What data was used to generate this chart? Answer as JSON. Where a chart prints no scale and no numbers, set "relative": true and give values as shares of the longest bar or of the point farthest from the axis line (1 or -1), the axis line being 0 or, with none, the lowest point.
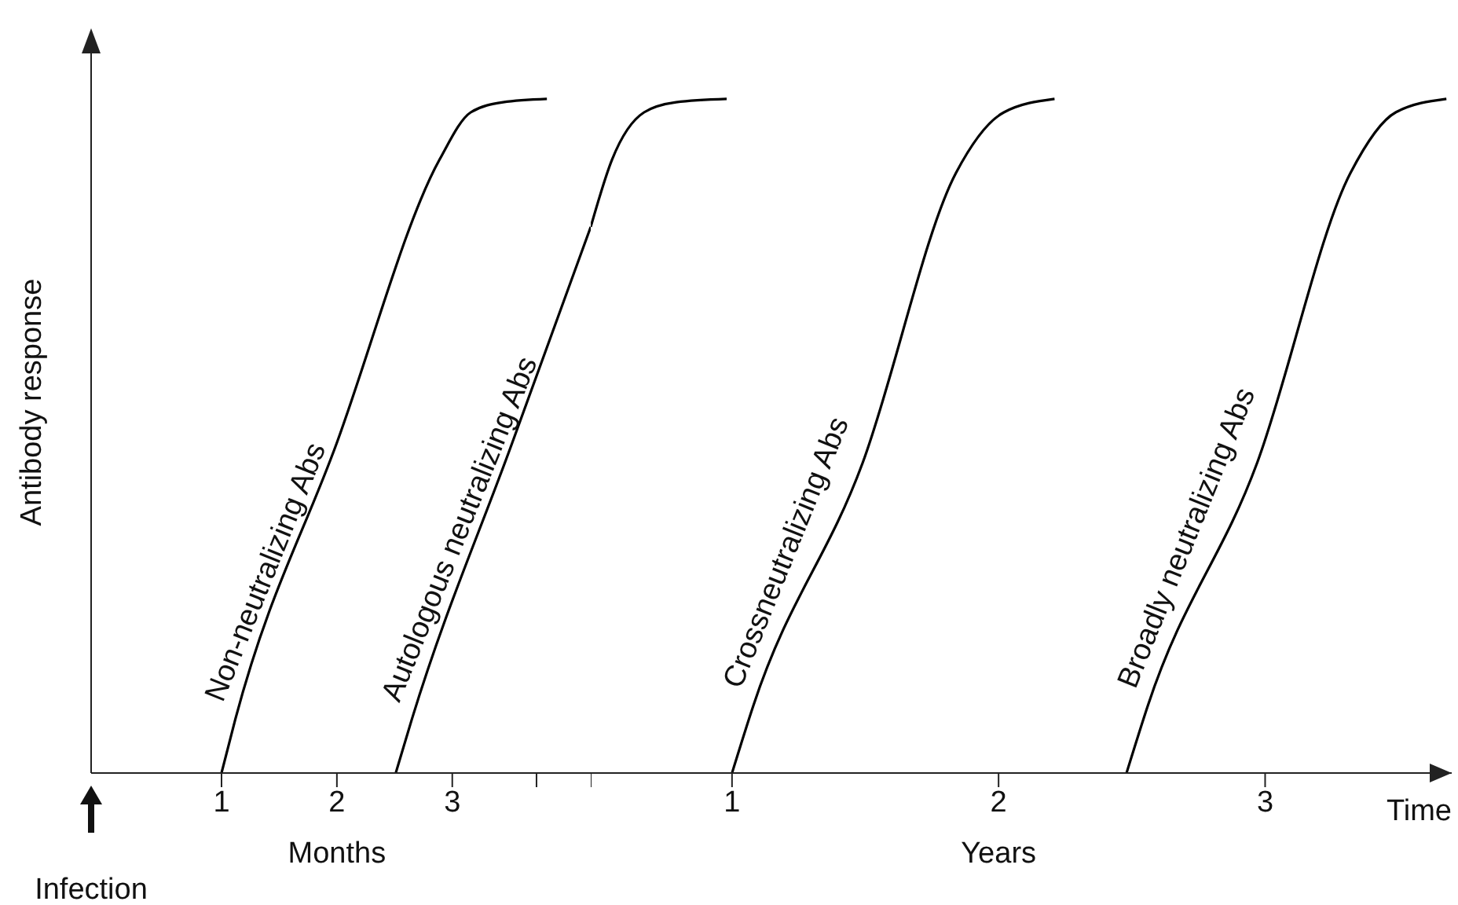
{
  "chart_data": [
    {
      "type": "line",
      "relative": true,
      "ylabel": "Antibody response",
      "annotations": [
        "Months",
        "Infection"
      ],
      "xlim": [
        -0.13,
        4.2
      ],
      "xticks": [
        1,
        2,
        3,
        {
          "value": 3.73,
          "label": null
        }
      ],
      "marker": "none",
      "line_style": "solid",
      "series": [
        {
          "name": "Non-neutralizing Abs",
          "color": "#000000",
          "x": [
            1.0,
            1.12,
            2.0,
            2.89,
            3.16,
            3.44,
            3.82
          ],
          "values": [
            0,
            0.08,
            0.49,
            0.91,
            0.98,
            0.995,
            1
          ]
        },
        {
          "name": "Autologous neutralizing Abs",
          "color": "#000000",
          "x": [
            2.51,
            2.65,
            3.52,
            4.2
          ],
          "values": [
            0,
            0.08,
            0.49,
            0.81
          ]
        }
      ]
    },
    {
      "type": "line",
      "relative": true,
      "xlabel": "Time",
      "annotations": [
        "Years"
      ],
      "tick_labels": "x",
      "xlim": [
        0.47,
        3.7
      ],
      "xticks": [
        {
          "value": 0.47,
          "label": null
        },
        1,
        2,
        3
      ],
      "marker": "none",
      "line_style": "solid",
      "series": [
        {
          "color": "#000000",
          "x": [
            0.47,
            0.55,
            0.67,
            0.79,
            0.98
          ],
          "values": [
            0.81,
            0.91,
            0.98,
            0.995,
            1
          ]
        },
        {
          "name": "Crossneutralizing Abs",
          "color": "#000000",
          "x": [
            1.0,
            1.08,
            1.49,
            1.84,
            2.02,
            2.21
          ],
          "values": [
            0,
            0.1,
            0.46,
            0.89,
            0.98,
            1
          ]
        },
        {
          "name": "Broadly neutralizing Abs",
          "color": "#000000",
          "x": [
            2.48,
            2.56,
            2.97,
            3.32,
            3.49,
            3.68
          ],
          "values": [
            0,
            0.1,
            0.46,
            0.89,
            0.98,
            1
          ]
        }
      ]
    }
  ]
}
